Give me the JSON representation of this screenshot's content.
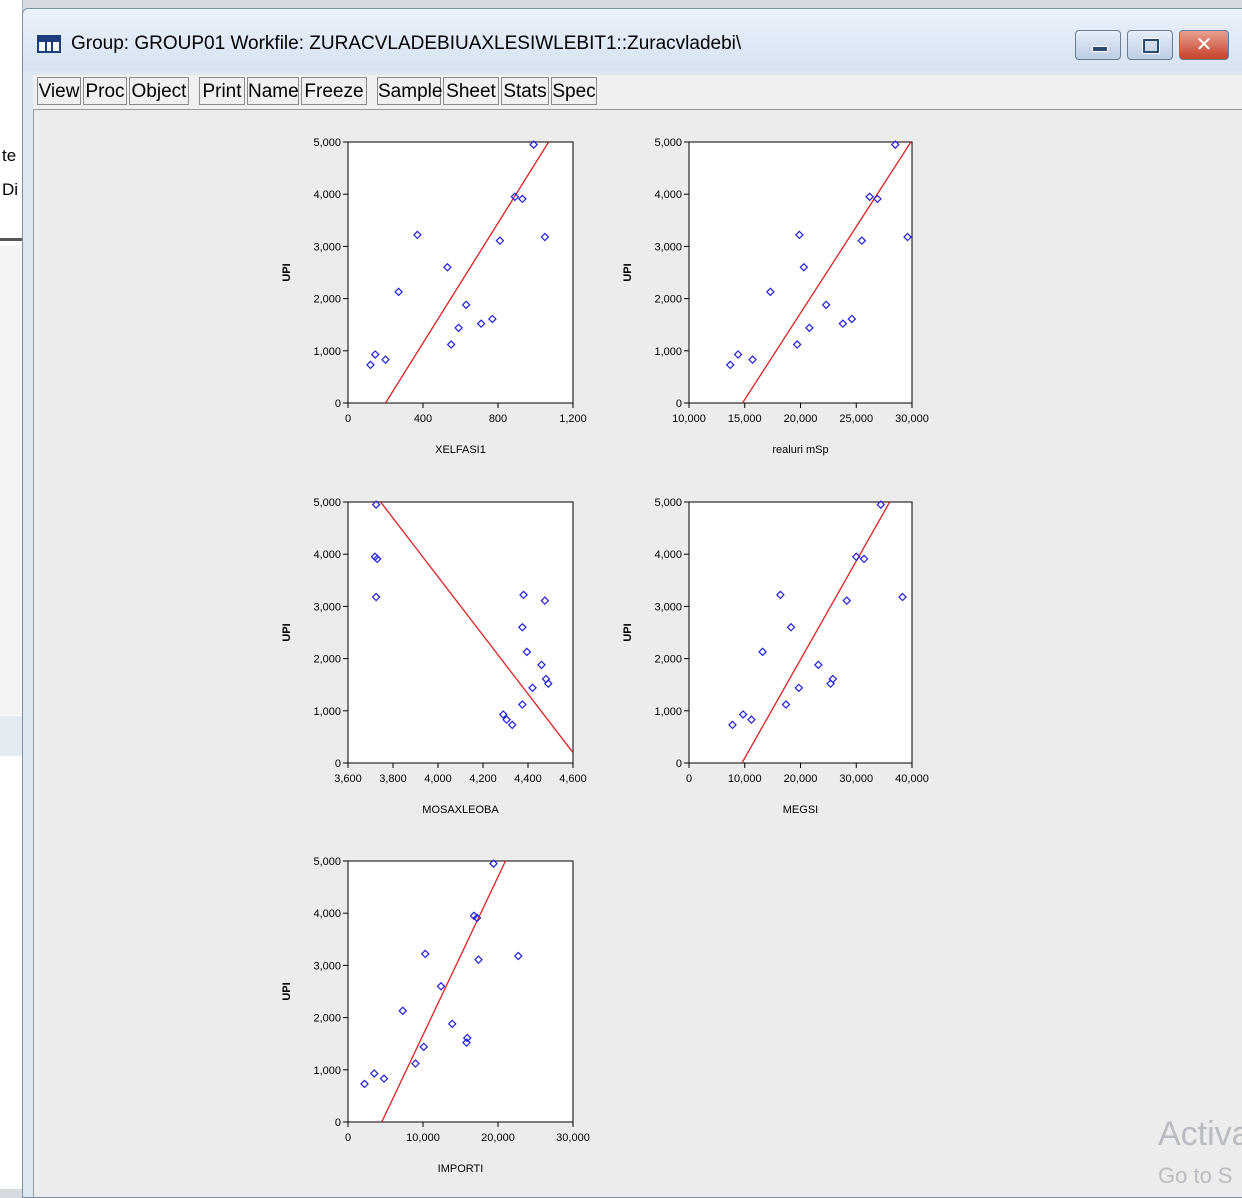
{
  "background_fragments": [
    "te",
    "Di"
  ],
  "window": {
    "title": "Group: GROUP01   Workfile: ZURACVLADEBIUAXLESIWLEBIT1::Zuracvladebi\\",
    "close_glyph": "✕"
  },
  "toolbar": {
    "buttons": [
      "View",
      "Proc",
      "Object",
      "Print",
      "Name",
      "Freeze",
      "Sample",
      "Sheet",
      "Stats",
      "Spec"
    ]
  },
  "watermark": {
    "line1": "Activa",
    "line2": "Go to S"
  },
  "colors": {
    "points": "#2020e0",
    "fit_line": "#e02020",
    "frame": "#000000"
  },
  "chart_data": [
    {
      "type": "scatter",
      "xlabel": "XELFASI1",
      "ylabel": "UPI",
      "xlim": [
        0,
        1200
      ],
      "ylim": [
        0,
        5000
      ],
      "xticks": [
        0,
        400,
        800,
        1200
      ],
      "xtick_labels": [
        "0",
        "400",
        "800",
        "1,200"
      ],
      "yticks": [
        0,
        1000,
        2000,
        3000,
        4000,
        5000
      ],
      "ytick_labels": [
        "0",
        "1,000",
        "2,000",
        "3,000",
        "4,000",
        "5,000"
      ],
      "points": [
        [
          120,
          730
        ],
        [
          145,
          930
        ],
        [
          200,
          830
        ],
        [
          270,
          2130
        ],
        [
          370,
          3220
        ],
        [
          530,
          2600
        ],
        [
          550,
          1120
        ],
        [
          590,
          1440
        ],
        [
          630,
          1880
        ],
        [
          710,
          1520
        ],
        [
          770,
          1610
        ],
        [
          810,
          3110
        ],
        [
          890,
          3950
        ],
        [
          930,
          3910
        ],
        [
          990,
          4950
        ],
        [
          1050,
          3180
        ]
      ],
      "fit_line": [
        [
          200,
          0
        ],
        [
          1070,
          5000
        ]
      ]
    },
    {
      "type": "scatter",
      "xlabel": "realuri mSp",
      "ylabel": "UPI",
      "xlim": [
        10000,
        30000
      ],
      "ylim": [
        0,
        5000
      ],
      "xticks": [
        10000,
        15000,
        20000,
        25000,
        30000
      ],
      "xtick_labels": [
        "10,000",
        "15,000",
        "20,000",
        "25,000",
        "30,000"
      ],
      "yticks": [
        0,
        1000,
        2000,
        3000,
        4000,
        5000
      ],
      "ytick_labels": [
        "0",
        "1,000",
        "2,000",
        "3,000",
        "4,000",
        "5,000"
      ],
      "points": [
        [
          13700,
          730
        ],
        [
          14400,
          930
        ],
        [
          15700,
          830
        ],
        [
          17300,
          2130
        ],
        [
          19700,
          1120
        ],
        [
          19900,
          3220
        ],
        [
          20300,
          2600
        ],
        [
          20800,
          1440
        ],
        [
          22300,
          1880
        ],
        [
          23800,
          1520
        ],
        [
          24600,
          1610
        ],
        [
          25500,
          3110
        ],
        [
          26200,
          3950
        ],
        [
          26900,
          3910
        ],
        [
          28500,
          4950
        ],
        [
          29600,
          3180
        ]
      ],
      "fit_line": [
        [
          14800,
          0
        ],
        [
          29900,
          5000
        ]
      ]
    },
    {
      "type": "scatter",
      "xlabel": "MOSAXLEOBA",
      "ylabel": "UPI",
      "xlim": [
        3600,
        4600
      ],
      "ylim": [
        0,
        5000
      ],
      "xticks": [
        3600,
        3800,
        4000,
        4200,
        4400,
        4600
      ],
      "xtick_labels": [
        "3,600",
        "3,800",
        "4,000",
        "4,200",
        "4,400",
        "4,600"
      ],
      "yticks": [
        0,
        1000,
        2000,
        3000,
        4000,
        5000
      ],
      "ytick_labels": [
        "0",
        "1,000",
        "2,000",
        "3,000",
        "4,000",
        "5,000"
      ],
      "points": [
        [
          3725,
          4950
        ],
        [
          3720,
          3950
        ],
        [
          3730,
          3910
        ],
        [
          3725,
          3180
        ],
        [
          4290,
          930
        ],
        [
          4305,
          830
        ],
        [
          4330,
          730
        ],
        [
          4375,
          1120
        ],
        [
          4380,
          3220
        ],
        [
          4375,
          2600
        ],
        [
          4395,
          2130
        ],
        [
          4420,
          1440
        ],
        [
          4460,
          1880
        ],
        [
          4475,
          3110
        ],
        [
          4480,
          1610
        ],
        [
          4490,
          1520
        ]
      ],
      "fit_line": [
        [
          3745,
          5000
        ],
        [
          4600,
          200
        ]
      ]
    },
    {
      "type": "scatter",
      "xlabel": "MEGSI",
      "ylabel": "UPI",
      "xlim": [
        0,
        40000
      ],
      "ylim": [
        0,
        5000
      ],
      "xticks": [
        0,
        10000,
        20000,
        30000,
        40000
      ],
      "xtick_labels": [
        "0",
        "10,000",
        "20,000",
        "30,000",
        "40,000"
      ],
      "yticks": [
        0,
        1000,
        2000,
        3000,
        4000,
        5000
      ],
      "ytick_labels": [
        "0",
        "1,000",
        "2,000",
        "3,000",
        "4,000",
        "5,000"
      ],
      "points": [
        [
          7800,
          730
        ],
        [
          9700,
          930
        ],
        [
          11200,
          830
        ],
        [
          13200,
          2130
        ],
        [
          16400,
          3220
        ],
        [
          17400,
          1120
        ],
        [
          18300,
          2600
        ],
        [
          19700,
          1440
        ],
        [
          23200,
          1880
        ],
        [
          25400,
          1520
        ],
        [
          25800,
          1610
        ],
        [
          28300,
          3110
        ],
        [
          30000,
          3950
        ],
        [
          31400,
          3910
        ],
        [
          34400,
          4950
        ],
        [
          38300,
          3180
        ]
      ],
      "fit_line": [
        [
          9500,
          0
        ],
        [
          36000,
          5000
        ]
      ]
    },
    {
      "type": "scatter",
      "xlabel": "IMPORTI",
      "ylabel": "UPI",
      "xlim": [
        0,
        30000
      ],
      "ylim": [
        0,
        5000
      ],
      "xticks": [
        0,
        10000,
        20000,
        30000
      ],
      "xtick_labels": [
        "0",
        "10,000",
        "20,000",
        "30,000"
      ],
      "yticks": [
        0,
        1000,
        2000,
        3000,
        4000,
        5000
      ],
      "ytick_labels": [
        "0",
        "1,000",
        "2,000",
        "3,000",
        "4,000",
        "5,000"
      ],
      "points": [
        [
          2200,
          730
        ],
        [
          3500,
          930
        ],
        [
          4800,
          830
        ],
        [
          7300,
          2130
        ],
        [
          9000,
          1120
        ],
        [
          10100,
          1440
        ],
        [
          10300,
          3220
        ],
        [
          12400,
          2600
        ],
        [
          13900,
          1880
        ],
        [
          15800,
          1520
        ],
        [
          15900,
          1610
        ],
        [
          16800,
          3950
        ],
        [
          17200,
          3910
        ],
        [
          17400,
          3110
        ],
        [
          19400,
          4950
        ],
        [
          22700,
          3180
        ]
      ],
      "fit_line": [
        [
          4500,
          0
        ],
        [
          21000,
          5000
        ]
      ]
    }
  ]
}
